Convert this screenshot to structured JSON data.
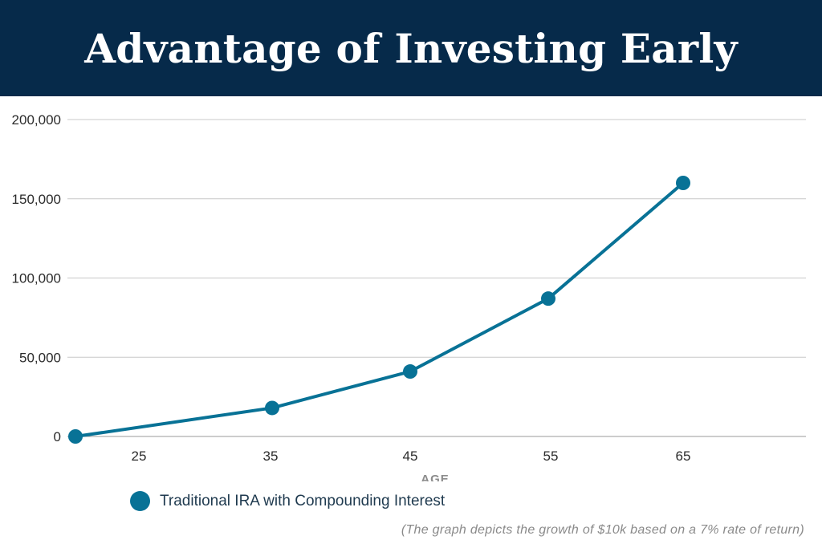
{
  "title": "Advantage of Investing Early",
  "note": "(The graph depicts the growth of $10k based on a 7% rate of return)",
  "colors": {
    "header_bg": "#062a4a",
    "series": "#087296",
    "grid": "#c8c8c8"
  },
  "chart_data": {
    "type": "line",
    "title": "Advantage of Investing Early",
    "xlabel": "AGE",
    "ylabel": "",
    "x_ticks": [
      "25",
      "35",
      "45",
      "55",
      "65"
    ],
    "y_ticks": [
      "200,000",
      "150,000",
      "100,000",
      "50,000",
      "0"
    ],
    "ylim": [
      0,
      200000
    ],
    "grid": true,
    "legend_position": "bottom-left",
    "series": [
      {
        "name": "Traditional IRA with Compounding Interest",
        "color": "#087296",
        "points": [
          {
            "x": 20,
            "y": 0
          },
          {
            "x": 35,
            "y": 18000
          },
          {
            "x": 45,
            "y": 41000
          },
          {
            "x": 55,
            "y": 87000
          },
          {
            "x": 65,
            "y": 160000
          }
        ]
      }
    ]
  }
}
